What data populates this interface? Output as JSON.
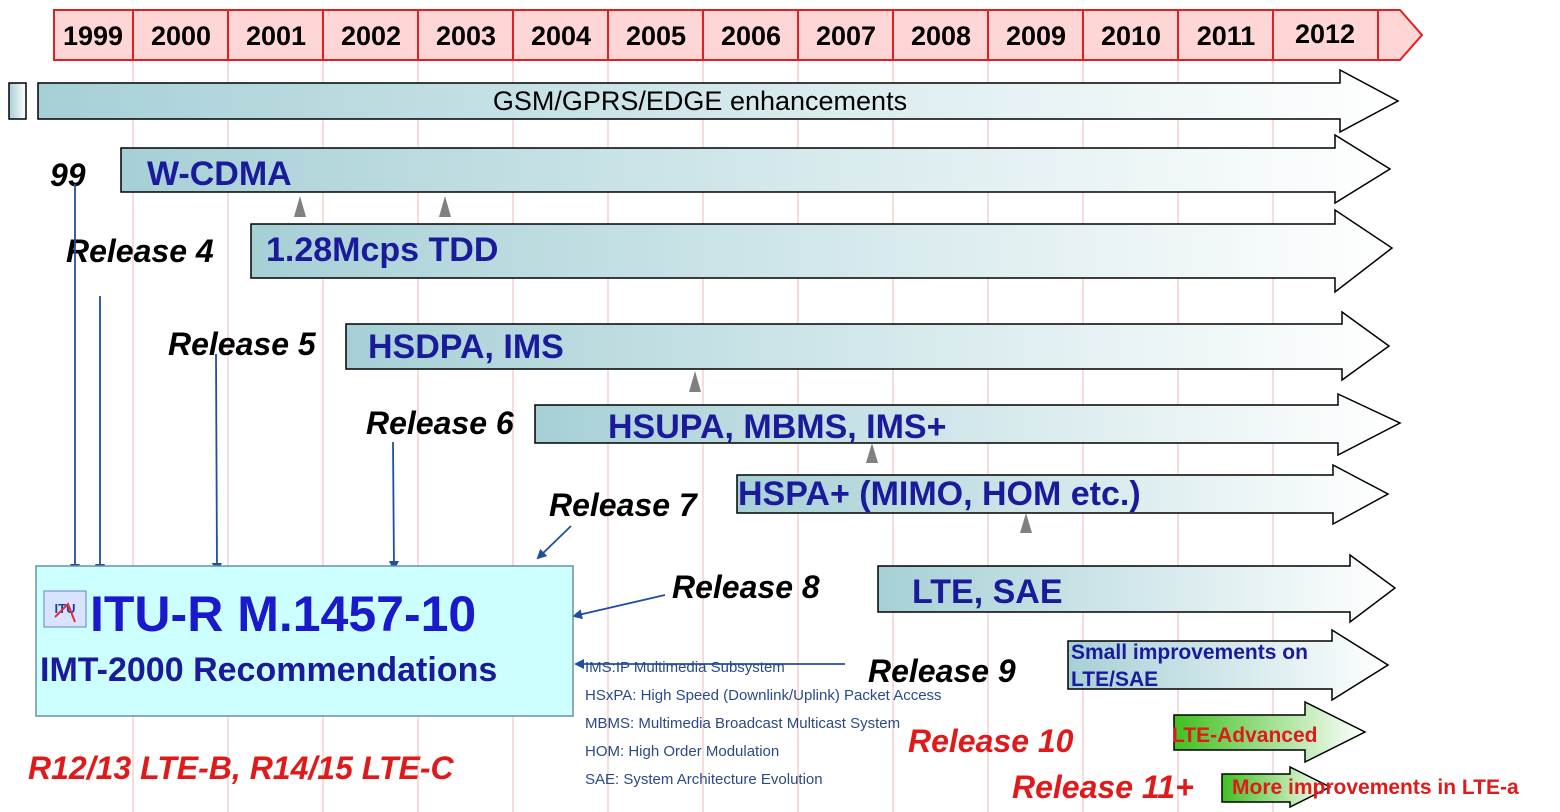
{
  "timeline": {
    "years": [
      "1999",
      "2000",
      "2001",
      "2002",
      "2003",
      "2004",
      "2005",
      "2006",
      "2007",
      "2008",
      "2009",
      "2010",
      "2011",
      "2012"
    ]
  },
  "bars": [
    {
      "id": "gsm",
      "label": "GSM/GPRS/EDGE enhancements",
      "release": ""
    },
    {
      "id": "wcdma",
      "label": "W-CDMA",
      "release": "99"
    },
    {
      "id": "tdd",
      "label": "1.28Mcps TDD",
      "release": "Release 4"
    },
    {
      "id": "hsdpa",
      "label": "HSDPA, IMS",
      "release": "Release 5"
    },
    {
      "id": "hsupa",
      "label": "HSUPA, MBMS, IMS+",
      "release": "Release 6"
    },
    {
      "id": "hspa",
      "label": "HSPA+ (MIMO, HOM etc.)",
      "release": "Release 7"
    },
    {
      "id": "lte",
      "label": "LTE, SAE",
      "release": "Release 8"
    },
    {
      "id": "small",
      "label_line1": "Small improvements on",
      "label_line2": "LTE/SAE",
      "release": "Release 9"
    },
    {
      "id": "ltea",
      "label": "LTE-Advanced",
      "release": "Release 10"
    },
    {
      "id": "more",
      "label": "More improvements in LTE-a",
      "release": "Release 11+"
    }
  ],
  "itu_box": {
    "logo_text": "ITU",
    "title": "ITU-R M.1457-10",
    "subtitle": "IMT-2000 Recommendations"
  },
  "legend": [
    "IMS:IP Multimedia Subsystem",
    "HSxPA: High Speed (Downlink/Uplink) Packet Access",
    "MBMS: Multimedia Broadcast Multicast System",
    "HOM: High Order Modulation",
    "SAE: System Architecture Evolution"
  ],
  "footer": {
    "note": "R12/13 LTE-B, R14/15 LTE-C"
  },
  "colors": {
    "timeline_fill": "#ffd6d6",
    "timeline_stroke": "#e02020",
    "bar_start": "#a6d0d6",
    "bar_end": "#ffffff",
    "itu_box_fill": "#ccffff",
    "connector": "#1f4fa0",
    "marker": "#808080",
    "green_start": "#40c020"
  }
}
